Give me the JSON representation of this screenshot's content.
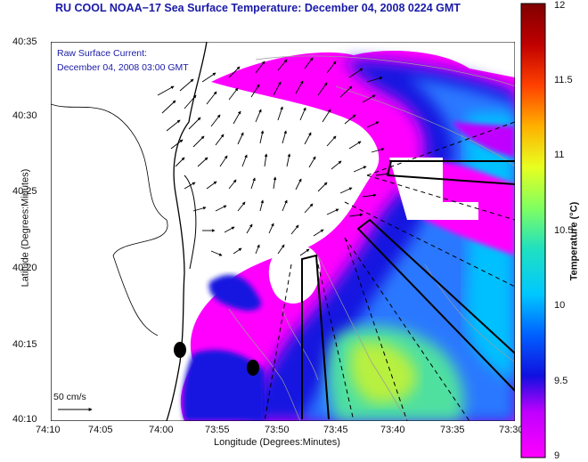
{
  "title": "RU COOL  NOAA−17  Sea Surface Temperature:  December 04, 2008 0224 GMT",
  "overlay": {
    "line1": "Raw Surface Current:",
    "line2": "December 04, 2008 03:00 GMT"
  },
  "scale": {
    "label": "50 cm/s"
  },
  "axes": {
    "xlabel": "Longitude (Degrees:Minutes)",
    "ylabel": "Latitude (Degrees:Minutes)",
    "xticks": [
      "74:10",
      "74:05",
      "74:00",
      "73:55",
      "73:50",
      "73:45",
      "73:40",
      "73:35",
      "73:30"
    ],
    "yticks": [
      "40:35",
      "40:30",
      "40:25",
      "40:20",
      "40:15",
      "40:10"
    ]
  },
  "colorbar": {
    "label": "Temperature (°C)",
    "ticks": [
      "12",
      "11.5",
      "11",
      "10.5",
      "10",
      "9.5",
      "9"
    ],
    "range": [
      9,
      12
    ],
    "colors": [
      "#ff00ff",
      "#c000ff",
      "#1010e0",
      "#0060ff",
      "#00c8ff",
      "#20e0c0",
      "#80ff60",
      "#e8ff20",
      "#ffb000",
      "#ff4000",
      "#c00000",
      "#800000"
    ]
  },
  "markers": {
    "count": 2
  }
}
